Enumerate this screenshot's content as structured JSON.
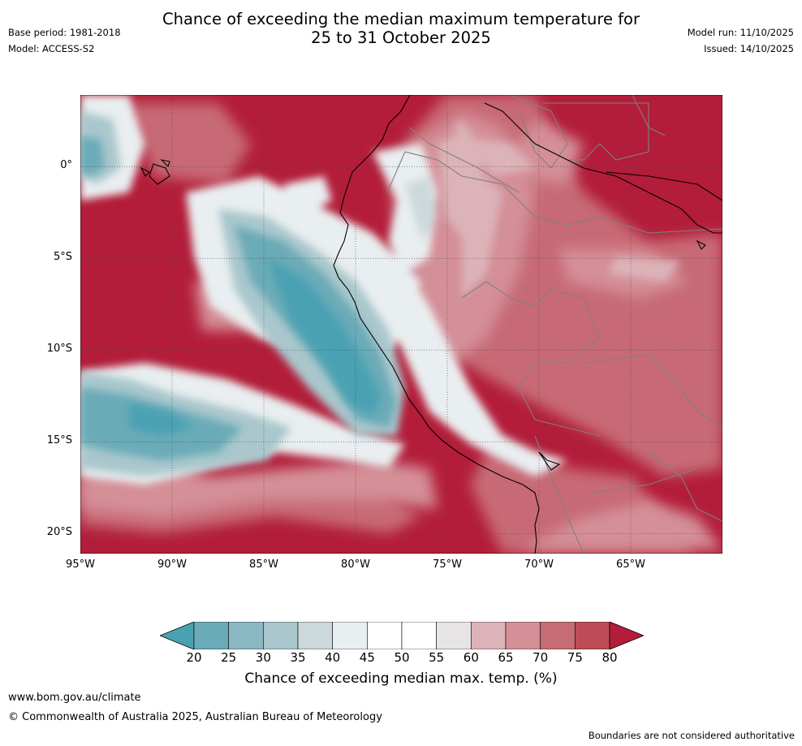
{
  "title": {
    "line1": "Chance of exceeding the median maximum temperature for",
    "line2": "25 to 31 October 2025"
  },
  "meta_left": {
    "base_period": "Base period: 1981-2018",
    "model": "Model: ACCESS-S2"
  },
  "meta_right": {
    "model_run": "Model run: 11/10/2025",
    "issued": "Issued: 14/10/2025"
  },
  "map": {
    "lat_labels": [
      "0°",
      "5°S",
      "10°S",
      "15°S",
      "20°S"
    ],
    "lon_labels": [
      "95°W",
      "90°W",
      "85°W",
      "80°W",
      "75°W",
      "70°W",
      "65°W"
    ],
    "lat_values": [
      0,
      -5,
      -10,
      -15,
      -20
    ],
    "lon_values": [
      -95,
      -90,
      -85,
      -80,
      -75,
      -70,
      -65
    ],
    "lat_range": [
      3.9,
      -21.1
    ],
    "lon_range": [
      -95,
      -60
    ]
  },
  "colorbar": {
    "ticks": [
      "20",
      "25",
      "30",
      "35",
      "40",
      "45",
      "50",
      "55",
      "60",
      "65",
      "70",
      "75",
      "80"
    ],
    "colors": [
      "#4aa1b2",
      "#6aabb8",
      "#8ab8c3",
      "#a9c7cc",
      "#ccd9dc",
      "#e9eef0",
      "#ffffff",
      "#ffffff",
      "#e6e4e5",
      "#dcb3b9",
      "#d48f97",
      "#c76b74",
      "#bd4c57",
      "#b31d39"
    ],
    "label": "Chance of exceeding median max. temp. (%)"
  },
  "footer": {
    "url": "www.bom.gov.au/climate",
    "copyright": "© Commonwealth of Australia 2025, Australian Bureau of Meteorology",
    "disclaimer": "Boundaries are not considered authoritative"
  }
}
